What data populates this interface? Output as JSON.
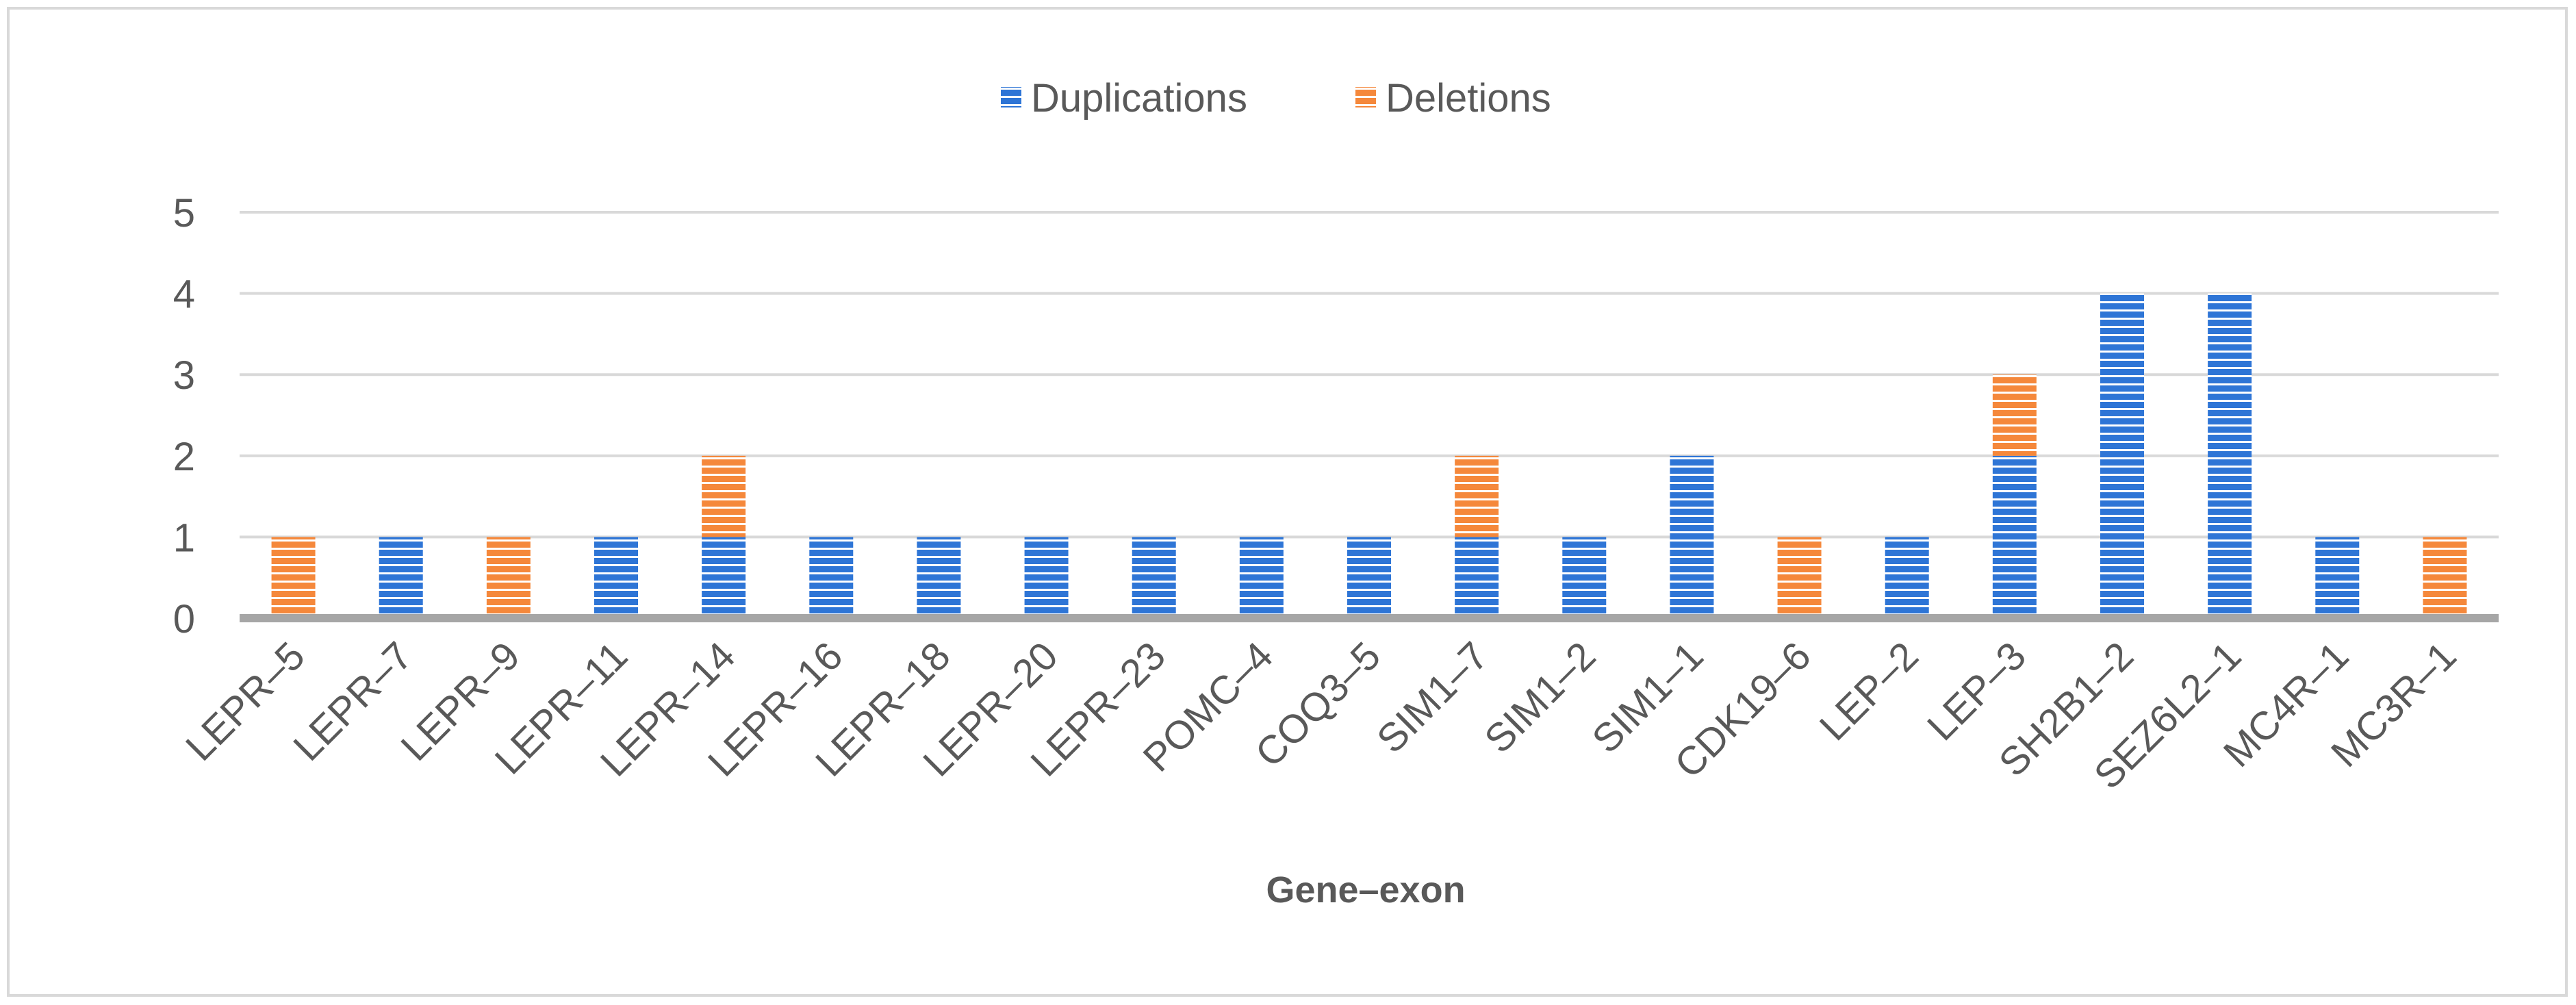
{
  "colors": {
    "duplications": "#2e75d6",
    "deletions": "#f5883b",
    "stripe": "#ffffff",
    "gridline": "#d9d9d9",
    "axis_line": "#a6a6a6",
    "text": "#595959",
    "frame_border": "#d9d9d9"
  },
  "chart_data": {
    "type": "bar",
    "stacked": true,
    "title": "",
    "xlabel": "Gene–exon",
    "ylabel": "",
    "ylim": [
      0,
      5
    ],
    "yticks": [
      0,
      1,
      2,
      3,
      4,
      5
    ],
    "grid": true,
    "legend_position": "top",
    "categories": [
      "LEPR–5",
      "LEPR–7",
      "LEPR–9",
      "LEPR–11",
      "LEPR–14",
      "LEPR–16",
      "LEPR–18",
      "LEPR–20",
      "LEPR–23",
      "POMC–4",
      "COQ3–5",
      "SIM1–7",
      "SIM1–2",
      "SIM1–1",
      "CDK19–6",
      "LEP–2",
      "LEP–3",
      "SH2B1–2",
      "SEZ6L2–1",
      "MC4R–1",
      "MC3R–1"
    ],
    "series": [
      {
        "name": "Duplications",
        "values": [
          0,
          1,
          0,
          1,
          1,
          1,
          1,
          1,
          1,
          1,
          1,
          1,
          1,
          2,
          0,
          1,
          2,
          4,
          4,
          1,
          0
        ]
      },
      {
        "name": "Deletions",
        "values": [
          1,
          0,
          1,
          0,
          1,
          0,
          0,
          0,
          0,
          0,
          0,
          1,
          0,
          0,
          1,
          0,
          1,
          0,
          0,
          0,
          1
        ]
      }
    ]
  }
}
